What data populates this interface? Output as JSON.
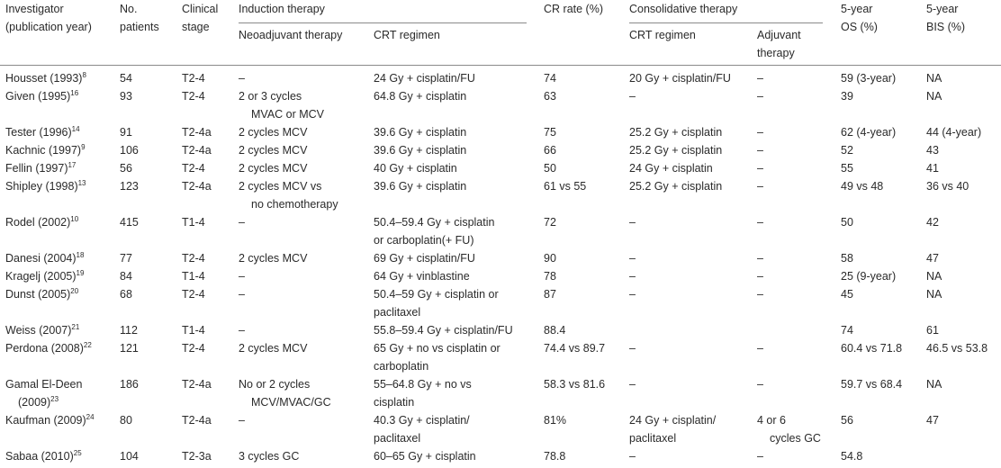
{
  "header": {
    "investigator": "Investigator",
    "publication_year": "(publication year)",
    "no": "No.",
    "patients": "patients",
    "clinical": "Clinical",
    "stage": "stage",
    "induction_therapy": "Induction therapy",
    "neoadjuvant_therapy": "Neoadjuvant therapy",
    "crt_regimen": "CRT regimen",
    "cr_rate": "CR rate (%)",
    "consolidative_therapy": "Consolidative therapy",
    "cons_crt_regimen": "CRT regimen",
    "adjuvant": "Adjuvant",
    "therapy": "therapy",
    "os_5year": "5-year",
    "os_label": "OS (%)",
    "bis_5year": "5-year",
    "bis_label": "BIS (%)"
  },
  "rows": [
    {
      "inv": [
        "Housset (1993)"
      ],
      "ref": "8",
      "n": "54",
      "stage": "T2-4",
      "neo": [
        "–"
      ],
      "crt": [
        "24 Gy + cisplatin/FU"
      ],
      "cr": "74",
      "ccrt": [
        "20 Gy + cisplatin/FU"
      ],
      "adj": [
        "–"
      ],
      "os": "59 (3-year)",
      "bis": "NA"
    },
    {
      "inv": [
        "Given (1995)"
      ],
      "ref": "16",
      "n": "93",
      "stage": "T2-4",
      "neo": [
        "2 or 3 cycles",
        "MVAC or MCV"
      ],
      "crt": [
        "64.8 Gy + cisplatin"
      ],
      "cr": "63",
      "ccrt": [
        "–"
      ],
      "adj": [
        "–"
      ],
      "os": "39",
      "bis": "NA"
    },
    {
      "inv": [
        "Tester (1996)"
      ],
      "ref": "14",
      "n": "91",
      "stage": "T2-4a",
      "neo": [
        "2 cycles MCV"
      ],
      "crt": [
        "39.6 Gy + cisplatin"
      ],
      "cr": "75",
      "ccrt": [
        "25.2 Gy + cisplatin"
      ],
      "adj": [
        "–"
      ],
      "os": "62 (4-year)",
      "bis": "44 (4-year)"
    },
    {
      "inv": [
        "Kachnic (1997)"
      ],
      "ref": "9",
      "n": "106",
      "stage": "T2-4a",
      "neo": [
        "2 cycles MCV"
      ],
      "crt": [
        "39.6 Gy + cisplatin"
      ],
      "cr": "66",
      "ccrt": [
        "25.2 Gy + cisplatin"
      ],
      "adj": [
        "–"
      ],
      "os": "52",
      "bis": "43"
    },
    {
      "inv": [
        "Fellin (1997)"
      ],
      "ref": "17",
      "n": "56",
      "stage": "T2-4",
      "neo": [
        "2 cycles MCV"
      ],
      "crt": [
        "40 Gy + cisplatin"
      ],
      "cr": "50",
      "ccrt": [
        "24 Gy + cisplatin"
      ],
      "adj": [
        "–"
      ],
      "os": "55",
      "bis": "41"
    },
    {
      "inv": [
        "Shipley (1998)"
      ],
      "ref": "13",
      "n": "123",
      "stage": "T2-4a",
      "neo": [
        "2 cycles MCV vs",
        "no chemotherapy"
      ],
      "crt": [
        "39.6 Gy + cisplatin"
      ],
      "cr": "61 vs 55",
      "ccrt": [
        "25.2 Gy + cisplatin"
      ],
      "adj": [
        "–"
      ],
      "os": "49 vs 48",
      "bis": "36 vs 40"
    },
    {
      "inv": [
        "Rodel (2002)"
      ],
      "ref": "10",
      "n": "415",
      "stage": "T1-4",
      "neo": [
        "–"
      ],
      "crt": [
        "50.4–59.4 Gy + cisplatin",
        "or carboplatin(+ FU)"
      ],
      "cr": "72",
      "ccrt": [
        "–"
      ],
      "adj": [
        "–"
      ],
      "os": "50",
      "bis": "42"
    },
    {
      "inv": [
        "Danesi (2004)"
      ],
      "ref": "18",
      "n": "77",
      "stage": "T2-4",
      "neo": [
        "2 cycles MCV"
      ],
      "crt": [
        "69 Gy + cisplatin/FU"
      ],
      "cr": "90",
      "ccrt": [
        "–"
      ],
      "adj": [
        "–"
      ],
      "os": "58",
      "bis": "47"
    },
    {
      "inv": [
        "Kragelj (2005)"
      ],
      "ref": "19",
      "n": "84",
      "stage": "T1-4",
      "neo": [
        "–"
      ],
      "crt": [
        "64 Gy + vinblastine"
      ],
      "cr": "78",
      "ccrt": [
        "–"
      ],
      "adj": [
        "–"
      ],
      "os": "25 (9-year)",
      "bis": "NA"
    },
    {
      "inv": [
        "Dunst (2005)"
      ],
      "ref": "20",
      "n": "68",
      "stage": "T2-4",
      "neo": [
        "–"
      ],
      "crt": [
        "50.4–59 Gy + cisplatin or",
        "paclitaxel"
      ],
      "cr": "87",
      "ccrt": [
        "–"
      ],
      "adj": [
        "–"
      ],
      "os": "45",
      "bis": "NA"
    },
    {
      "inv": [
        "Weiss (2007)"
      ],
      "ref": "21",
      "n": "112",
      "stage": "T1-4",
      "neo": [
        "–"
      ],
      "crt": [
        "55.8–59.4 Gy + cisplatin/FU"
      ],
      "cr": "88.4",
      "ccrt": [
        ""
      ],
      "adj": [
        ""
      ],
      "os": "74",
      "bis": "61"
    },
    {
      "inv": [
        "Perdona (2008)"
      ],
      "ref": "22",
      "n": "121",
      "stage": "T2-4",
      "neo": [
        "2 cycles MCV"
      ],
      "crt": [
        "65 Gy + no vs cisplatin or",
        "carboplatin"
      ],
      "cr": "74.4 vs 89.7",
      "ccrt": [
        "–"
      ],
      "adj": [
        "–"
      ],
      "os": "60.4 vs 71.8",
      "bis": "46.5 vs 53.8"
    },
    {
      "inv": [
        "Gamal El-Deen",
        "(2009)"
      ],
      "ref": "23",
      "n": "186",
      "stage": "T2-4a",
      "neo": [
        "No or 2 cycles",
        "MCV/MVAC/GC"
      ],
      "crt": [
        "55–64.8 Gy + no vs",
        "cisplatin"
      ],
      "cr": "58.3 vs 81.6",
      "ccrt": [
        "–"
      ],
      "adj": [
        "–"
      ],
      "os": "59.7 vs 68.4",
      "bis": "NA"
    },
    {
      "inv": [
        "Kaufman (2009)"
      ],
      "ref": "24",
      "n": "80",
      "stage": "T2-4a",
      "neo": [
        "–"
      ],
      "crt": [
        "40.3 Gy + cisplatin/",
        "paclitaxel"
      ],
      "cr": "81%",
      "ccrt": [
        "24 Gy + cisplatin/",
        "paclitaxel"
      ],
      "adj": [
        "4 or 6",
        "cycles GC"
      ],
      "os": "56",
      "bis": "47"
    },
    {
      "inv": [
        "Sabaa (2010)"
      ],
      "ref": "25",
      "n": "104",
      "stage": "T2-3a",
      "neo": [
        "3 cycles GC"
      ],
      "crt": [
        "60–65 Gy + cisplatin"
      ],
      "cr": "78.8",
      "ccrt": [
        "–"
      ],
      "adj": [
        "–"
      ],
      "os": "54.8",
      "bis": ""
    }
  ]
}
